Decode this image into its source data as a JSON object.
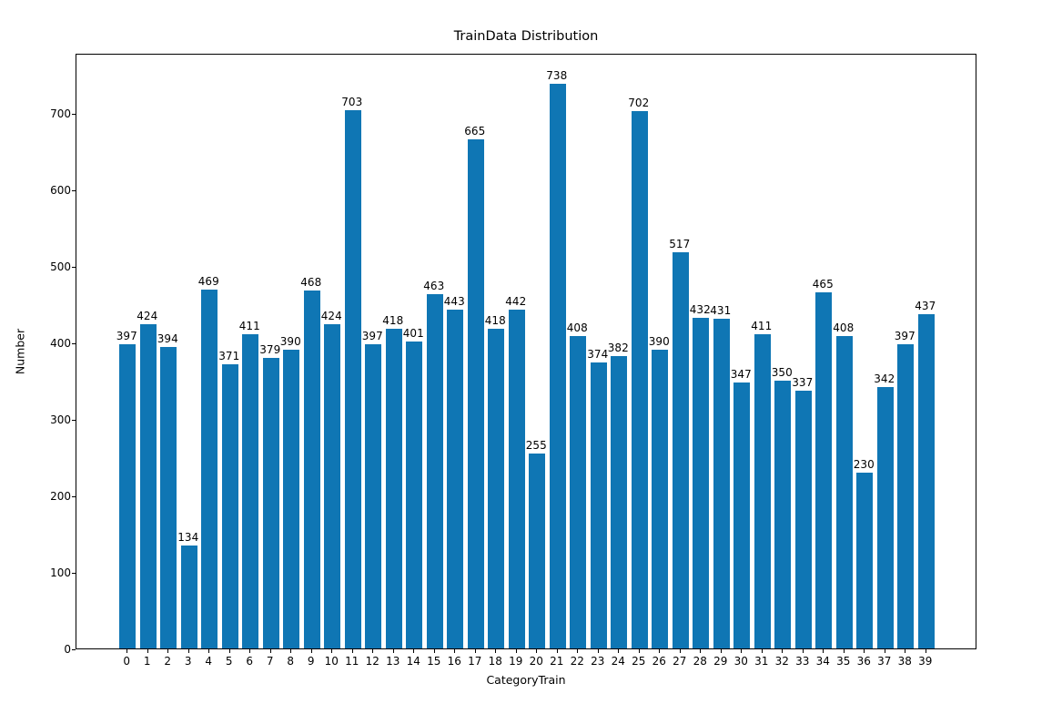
{
  "chart_data": {
    "type": "bar",
    "title": "TrainData Distribution",
    "xlabel": "CategoryTrain",
    "ylabel": "Number",
    "categories": [
      "0",
      "1",
      "2",
      "3",
      "4",
      "5",
      "6",
      "7",
      "8",
      "9",
      "10",
      "11",
      "12",
      "13",
      "14",
      "15",
      "16",
      "17",
      "18",
      "19",
      "20",
      "21",
      "22",
      "23",
      "24",
      "25",
      "26",
      "27",
      "28",
      "29",
      "30",
      "31",
      "32",
      "33",
      "34",
      "35",
      "36",
      "37",
      "38",
      "39"
    ],
    "values": [
      397,
      424,
      394,
      134,
      469,
      371,
      411,
      379,
      390,
      468,
      424,
      703,
      397,
      418,
      401,
      463,
      443,
      665,
      418,
      442,
      255,
      738,
      408,
      374,
      382,
      702,
      390,
      517,
      432,
      431,
      347,
      411,
      350,
      337,
      465,
      408,
      230,
      342,
      397,
      437
    ],
    "bar_value_labels_shown": true,
    "yticks": [
      0,
      100,
      200,
      300,
      400,
      500,
      600,
      700
    ],
    "ylim": [
      0,
      778
    ],
    "grid": "off",
    "legend": "none",
    "bar_color": "#0f76b4",
    "text_color": "#000000",
    "background_color": "#ffffff"
  }
}
